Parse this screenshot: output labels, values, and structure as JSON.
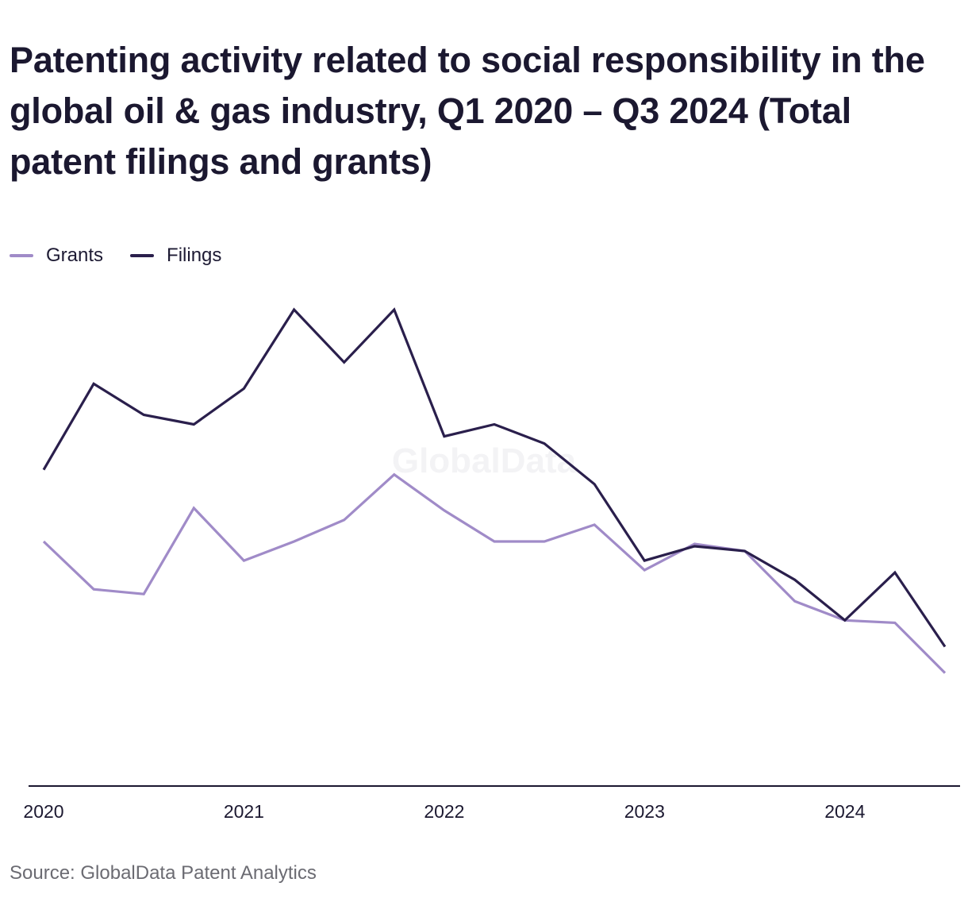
{
  "title": "Patenting activity related to social responsibility in the global oil & gas industry, Q1 2020 – Q3 2024 (Total patent filings and grants)",
  "source": "Source: GlobalData Patent Analytics",
  "watermark": "GlobalData",
  "colors": {
    "grants": "#a08bc8",
    "filings": "#2a1f4c",
    "axis": "#1b1830",
    "tick_text": "#1b1830",
    "watermark": "#f3f3f5"
  },
  "chart_data": {
    "type": "line",
    "title": "Patenting activity related to social responsibility in the global oil & gas industry, Q1 2020 – Q3 2024 (Total patent filings and grants)",
    "x": [
      "Q1 2020",
      "Q2 2020",
      "Q3 2020",
      "Q4 2020",
      "Q1 2021",
      "Q2 2021",
      "Q3 2021",
      "Q4 2021",
      "Q1 2022",
      "Q2 2022",
      "Q3 2022",
      "Q4 2022",
      "Q1 2023",
      "Q2 2023",
      "Q3 2023",
      "Q4 2023",
      "Q1 2024",
      "Q2 2024",
      "Q3 2024"
    ],
    "x_ticks": [
      "2020",
      "2021",
      "2022",
      "2023",
      "2024"
    ],
    "x_tick_positions": [
      0,
      4,
      8,
      12,
      16
    ],
    "ylim": [
      0,
      100
    ],
    "grid": false,
    "legend_position": "top-left",
    "series": [
      {
        "name": "Grants",
        "values": [
          49.5,
          39.5,
          38.5,
          56.5,
          45.5,
          49.5,
          54,
          63.5,
          56,
          49.5,
          49.5,
          53,
          43.5,
          49,
          47.5,
          37,
          33,
          32.5,
          22
        ]
      },
      {
        "name": "Filings",
        "values": [
          64.5,
          82.5,
          76,
          74,
          81.5,
          98,
          87,
          98,
          71.5,
          74,
          70,
          61.5,
          45.5,
          48.5,
          47.5,
          41.5,
          33,
          43,
          27.5
        ]
      }
    ]
  }
}
